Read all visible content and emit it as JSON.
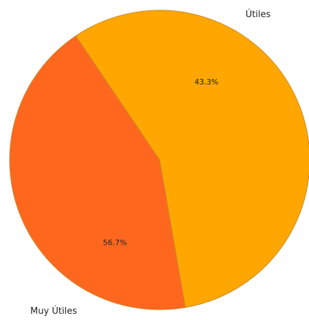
{
  "chart_data": {
    "type": "pie",
    "categories": [
      "Útiles",
      "Muy Útiles"
    ],
    "values": [
      43.3,
      56.7
    ],
    "percent_labels": [
      "43.3%",
      "56.7%"
    ],
    "colors": [
      "#FF671F",
      "#FFA600"
    ],
    "edge_color": "#C98A2A",
    "start_angle_deg": 124,
    "direction": "counterclockwise",
    "legend": "none"
  }
}
